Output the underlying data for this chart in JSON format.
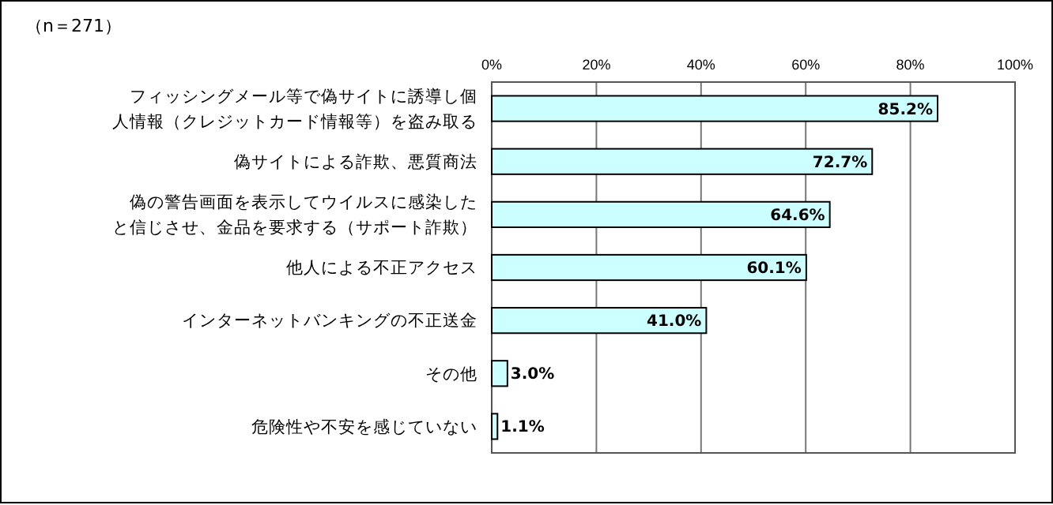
{
  "chart_data": {
    "type": "bar",
    "orientation": "horizontal",
    "title": "（n＝271）",
    "categories": [
      "フィッシングメール等で偽サイトに誘導し個人情報（クレジットカード情報等）を盗み取る",
      "偽サイトによる詐欺、悪質商法",
      "偽の警告画面を表示してウイルスに感染したと信じさせ、金品を要求する（サポート詐欺）",
      "他人による不正アクセス",
      "インターネットバンキングの不正送金",
      "その他",
      "危険性や不安を感じていない"
    ],
    "values": [
      85.2,
      72.7,
      64.6,
      60.1,
      41.0,
      3.0,
      1.1
    ],
    "value_labels": [
      "85.2%",
      "72.7%",
      "64.6%",
      "60.1%",
      "41.0%",
      "3.0%",
      "1.1%"
    ],
    "color": "#ccffff",
    "xlim": [
      0,
      100
    ],
    "xticks": [
      {
        "value": 0,
        "label": "0%"
      },
      {
        "value": 20,
        "label": "20%"
      },
      {
        "value": 40,
        "label": "40%"
      },
      {
        "value": 60,
        "label": "60%"
      },
      {
        "value": 80,
        "label": "80%"
      },
      {
        "value": 100,
        "label": "100%"
      }
    ],
    "grid": "x"
  }
}
